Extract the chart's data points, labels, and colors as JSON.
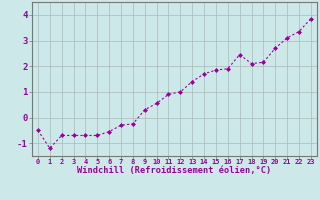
{
  "x": [
    0,
    1,
    2,
    3,
    4,
    5,
    6,
    7,
    8,
    9,
    10,
    11,
    12,
    13,
    14,
    15,
    16,
    17,
    18,
    19,
    20,
    21,
    22,
    23
  ],
  "y": [
    -0.5,
    -1.2,
    -0.7,
    -0.7,
    -0.7,
    -0.7,
    -0.55,
    -0.3,
    -0.25,
    0.3,
    0.55,
    0.9,
    1.0,
    1.4,
    1.7,
    1.85,
    1.9,
    2.45,
    2.1,
    2.15,
    2.7,
    3.1,
    3.35,
    3.85
  ],
  "line_color": "#990099",
  "marker": "D",
  "marker_size": 2.0,
  "bg_color": "#cce8e8",
  "grid_color": "#aababa",
  "xlabel": "Windchill (Refroidissement éolien,°C)",
  "ylim": [
    -1.5,
    4.5
  ],
  "xlim": [
    -0.5,
    23.5
  ],
  "yticks": [
    -1,
    0,
    1,
    2,
    3,
    4
  ],
  "xticks": [
    0,
    1,
    2,
    3,
    4,
    5,
    6,
    7,
    8,
    9,
    10,
    11,
    12,
    13,
    14,
    15,
    16,
    17,
    18,
    19,
    20,
    21,
    22,
    23
  ],
  "tick_color": "#990099",
  "label_color": "#990099",
  "spine_color": "#777777",
  "tick_fontsize": 5.0,
  "ytick_fontsize": 6.5,
  "xlabel_fontsize": 6.2,
  "linewidth": 0.8
}
